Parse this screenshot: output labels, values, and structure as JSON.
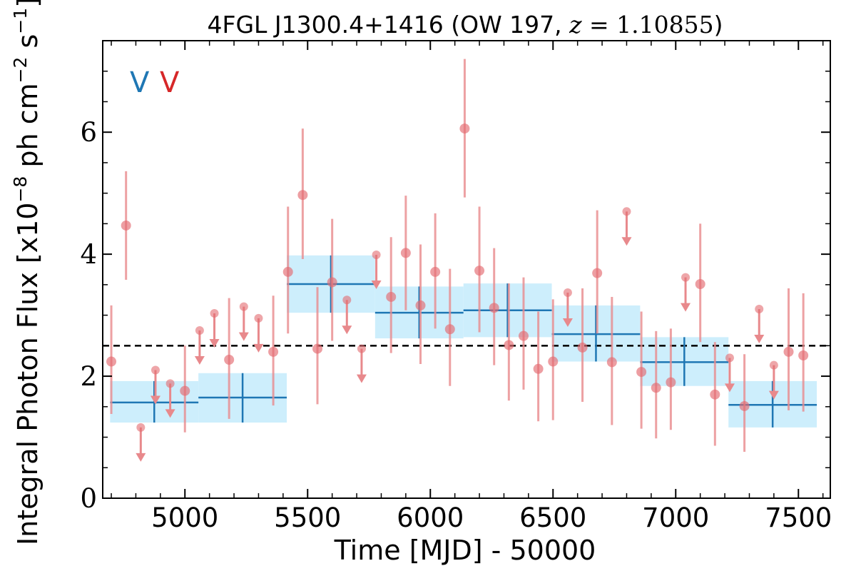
{
  "chart_data": {
    "type": "scatter",
    "title": "4FGL J1300.4+1416 (OW 197, z = 1.10855)",
    "title_parts": {
      "prefix": "4FGL J1300.4+1416 (OW 197, ",
      "var": "z",
      "eq": " = 1.10855",
      "suffix": ")"
    },
    "xlabel": "Time [MJD] - 50000",
    "ylabel_main": "Integral Photon Flux [x10",
    "ylabel_exp1": "−8",
    "ylabel_mid": " ph cm",
    "ylabel_exp2": "−2",
    "ylabel_post": " s",
    "ylabel_exp3": "−1",
    "ylabel_end": "]",
    "xlim": [
      4665,
      7630
    ],
    "ylim": [
      0,
      7.5
    ],
    "xticks": [
      5000,
      5500,
      6000,
      6500,
      7000,
      7500
    ],
    "yticks": [
      0,
      2,
      4,
      6
    ],
    "grid": false,
    "legend": {
      "placement": "top-left",
      "entries": [
        {
          "label": "V",
          "color": "#1f77b4"
        },
        {
          "label": "V",
          "color": "#d62728"
        }
      ]
    },
    "reference_line": {
      "y": 2.5,
      "style": "dashed",
      "color": "#000000"
    },
    "series": [
      {
        "kind": "binned",
        "color": "#1f77b4",
        "box_color": "#cdeefc",
        "bins": [
          {
            "x0": 4695,
            "x1": 5055,
            "x": 4875,
            "y": 1.57,
            "ylo": 1.24,
            "yhi": 1.92
          },
          {
            "x0": 5055,
            "x1": 5415,
            "x": 5235,
            "y": 1.65,
            "ylo": 1.24,
            "yhi": 2.05
          },
          {
            "x0": 5415,
            "x1": 5775,
            "x": 5595,
            "y": 3.51,
            "ylo": 3.04,
            "yhi": 3.98
          },
          {
            "x0": 5775,
            "x1": 6135,
            "x": 5955,
            "y": 3.04,
            "ylo": 2.62,
            "yhi": 3.47
          },
          {
            "x0": 6135,
            "x1": 6495,
            "x": 6315,
            "y": 3.08,
            "ylo": 2.64,
            "yhi": 3.52
          },
          {
            "x0": 6495,
            "x1": 6855,
            "x": 6675,
            "y": 2.69,
            "ylo": 2.24,
            "yhi": 3.16
          },
          {
            "x0": 6855,
            "x1": 7215,
            "x": 7035,
            "y": 2.23,
            "ylo": 1.84,
            "yhi": 2.64
          },
          {
            "x0": 7215,
            "x1": 7575,
            "x": 7395,
            "y": 1.53,
            "ylo": 1.16,
            "yhi": 1.92
          }
        ]
      },
      {
        "kind": "points",
        "color": "#e8898c",
        "marker_color": "#e36a70",
        "points": [
          {
            "x": 4700,
            "y": 2.24,
            "ylo": 1.38,
            "yhi": 3.16
          },
          {
            "x": 4760,
            "y": 4.47,
            "ylo": 3.58,
            "yhi": 5.36
          },
          {
            "x": 4820,
            "y": 1.16,
            "ul": true
          },
          {
            "x": 4880,
            "y": 2.1,
            "ul": true
          },
          {
            "x": 4940,
            "y": 1.88,
            "ul": true
          },
          {
            "x": 5000,
            "y": 1.76,
            "ylo": 1.08,
            "yhi": 2.5
          },
          {
            "x": 5060,
            "y": 2.75,
            "ul": true
          },
          {
            "x": 5120,
            "y": 3.03,
            "ul": true
          },
          {
            "x": 5180,
            "y": 2.27,
            "ylo": 1.3,
            "yhi": 3.28
          },
          {
            "x": 5240,
            "y": 3.14,
            "ul": true
          },
          {
            "x": 5300,
            "y": 2.95,
            "ul": true
          },
          {
            "x": 5360,
            "y": 2.4,
            "ylo": 1.52,
            "yhi": 3.32
          },
          {
            "x": 5420,
            "y": 3.71,
            "ylo": 2.7,
            "yhi": 4.78
          },
          {
            "x": 5480,
            "y": 4.97,
            "ylo": 3.92,
            "yhi": 6.06
          },
          {
            "x": 5540,
            "y": 2.45,
            "ylo": 1.54,
            "yhi": 3.46
          },
          {
            "x": 5600,
            "y": 3.54,
            "ylo": 2.58,
            "yhi": 4.58
          },
          {
            "x": 5660,
            "y": 3.25,
            "ul": true
          },
          {
            "x": 5720,
            "y": 2.45,
            "ul": true
          },
          {
            "x": 5780,
            "y": 3.99,
            "ul": true
          },
          {
            "x": 5840,
            "y": 3.3,
            "ylo": 2.38,
            "yhi": 4.28
          },
          {
            "x": 5900,
            "y": 4.02,
            "ylo": 3.08,
            "yhi": 4.96
          },
          {
            "x": 5960,
            "y": 3.16,
            "ylo": 2.2,
            "yhi": 4.16
          },
          {
            "x": 6020,
            "y": 3.71,
            "ylo": 2.78,
            "yhi": 4.67
          },
          {
            "x": 6080,
            "y": 2.77,
            "ylo": 1.84,
            "yhi": 3.76
          },
          {
            "x": 6140,
            "y": 6.06,
            "ylo": 4.93,
            "yhi": 7.2
          },
          {
            "x": 6200,
            "y": 3.73,
            "ylo": 2.72,
            "yhi": 4.78
          },
          {
            "x": 6260,
            "y": 3.12,
            "ylo": 2.18,
            "yhi": 4.1
          },
          {
            "x": 6320,
            "y": 2.51,
            "ylo": 1.6,
            "yhi": 3.52
          },
          {
            "x": 6380,
            "y": 2.66,
            "ylo": 1.78,
            "yhi": 3.62
          },
          {
            "x": 6440,
            "y": 2.12,
            "ylo": 1.26,
            "yhi": 3.06
          },
          {
            "x": 6500,
            "y": 2.24,
            "ylo": 1.28,
            "yhi": 3.26
          },
          {
            "x": 6560,
            "y": 3.37,
            "ul": true
          },
          {
            "x": 6620,
            "y": 2.47,
            "ylo": 1.58,
            "yhi": 3.44
          },
          {
            "x": 6680,
            "y": 3.69,
            "ylo": 2.7,
            "yhi": 4.72
          },
          {
            "x": 6740,
            "y": 2.23,
            "ylo": 1.2,
            "yhi": 3.3
          },
          {
            "x": 6800,
            "y": 4.7,
            "ul": true
          },
          {
            "x": 6860,
            "y": 2.07,
            "ylo": 1.14,
            "yhi": 3.06
          },
          {
            "x": 6920,
            "y": 1.81,
            "ylo": 0.98,
            "yhi": 2.74
          },
          {
            "x": 6980,
            "y": 1.9,
            "ylo": 1.12,
            "yhi": 2.78
          },
          {
            "x": 7040,
            "y": 3.62,
            "ul": true
          },
          {
            "x": 7100,
            "y": 3.51,
            "ylo": 2.56,
            "yhi": 4.5
          },
          {
            "x": 7160,
            "y": 1.7,
            "ylo": 0.86,
            "yhi": 2.56
          },
          {
            "x": 7220,
            "y": 2.3,
            "ul": true
          },
          {
            "x": 7280,
            "y": 1.51,
            "ylo": 0.76,
            "yhi": 2.36
          },
          {
            "x": 7340,
            "y": 3.1,
            "ul": true
          },
          {
            "x": 7400,
            "y": 2.18,
            "ul": true
          },
          {
            "x": 7460,
            "y": 2.4,
            "ylo": 1.44,
            "yhi": 3.44
          },
          {
            "x": 7520,
            "y": 2.34,
            "ylo": 1.42,
            "yhi": 3.36
          }
        ]
      }
    ]
  }
}
